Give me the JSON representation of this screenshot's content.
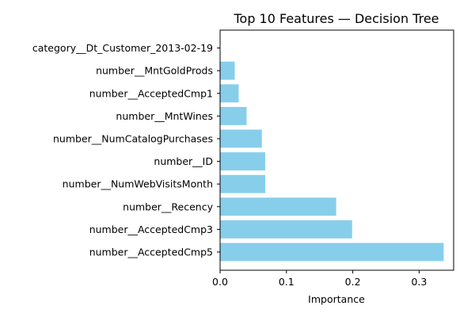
{
  "chart_data": {
    "type": "bar",
    "orientation": "horizontal",
    "title": "Top 10 Features — Decision Tree",
    "xlabel": "Importance",
    "ylabel": "",
    "xlim": [
      0,
      0.352
    ],
    "x_ticks": [
      0.0,
      0.1,
      0.2,
      0.3
    ],
    "x_tick_labels": [
      "0.0",
      "0.1",
      "0.2",
      "0.3"
    ],
    "bar_color": "#87ceeb",
    "grid": false,
    "categories": [
      "number__AcceptedCmp5",
      "number__AcceptedCmp3",
      "number__Recency",
      "number__NumWebVisitsMonth",
      "number__ID",
      "number__NumCatalogPurchases",
      "number__MntWines",
      "number__AcceptedCmp1",
      "number__MntGoldProds",
      "category__Dt_Customer_2013-02-19"
    ],
    "values": [
      0.337,
      0.199,
      0.175,
      0.068,
      0.068,
      0.063,
      0.04,
      0.028,
      0.022,
      0.0
    ]
  }
}
